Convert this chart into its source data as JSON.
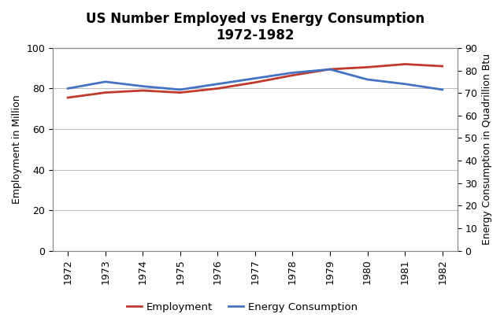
{
  "title": "US Number Employed vs Energy Consumption\n1972-1982",
  "years": [
    1972,
    1973,
    1974,
    1975,
    1976,
    1977,
    1978,
    1979,
    1980,
    1981,
    1982
  ],
  "employment": [
    75.5,
    78.0,
    79.0,
    78.0,
    80.0,
    83.0,
    86.5,
    89.5,
    90.5,
    92.0,
    91.0
  ],
  "energy": [
    72.0,
    75.0,
    73.0,
    71.5,
    74.0,
    76.5,
    79.0,
    80.5,
    76.0,
    74.0,
    71.5
  ],
  "employment_color": "#c0392b",
  "energy_color": "#4472c4",
  "ylabel_left": "Employment in Million",
  "ylabel_right": "Energy Consumption in Quadrillion Btu",
  "ylim_left": [
    0,
    100
  ],
  "ylim_right": [
    0,
    90
  ],
  "yticks_left": [
    0,
    20,
    40,
    60,
    80,
    100
  ],
  "yticks_right": [
    0,
    10,
    20,
    30,
    40,
    50,
    60,
    70,
    80,
    90
  ],
  "legend_employment": "Employment",
  "legend_energy": "Energy Consumption",
  "bg_color": "#ffffff",
  "line_width": 2.0,
  "grid_color": "#c0c0c0",
  "title_fontsize": 12,
  "axis_label_fontsize": 9,
  "tick_fontsize": 9
}
